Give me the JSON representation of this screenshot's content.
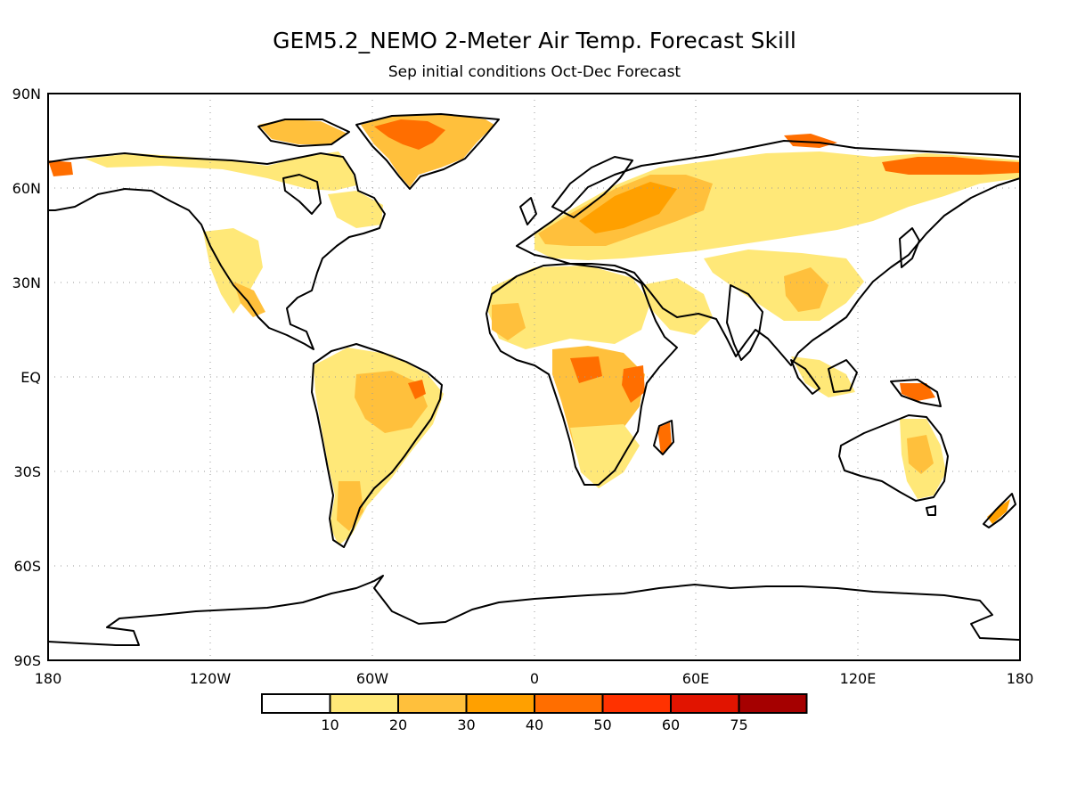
{
  "title": "GEM5.2_NEMO 2-Meter Air Temp. Forecast Skill",
  "subtitle": "Sep initial conditions  Oct-Dec Forecast",
  "lat_labels": [
    "90N",
    "60N",
    "30N",
    "EQ",
    "30S",
    "60S",
    "90S"
  ],
  "lon_labels": [
    "180",
    "120W",
    "60W",
    "0",
    "60E",
    "120E",
    "180"
  ],
  "colorbar": {
    "boundaries": [
      "10",
      "20",
      "30",
      "40",
      "50",
      "60",
      "75"
    ],
    "colors": [
      "#ffffff",
      "#ffe878",
      "#ffc03c",
      "#ffa000",
      "#ff6e00",
      "#ff3200",
      "#e11400",
      "#a50000"
    ]
  },
  "colors": {
    "coastline": "#000000",
    "gridline": "#9a9a9a"
  }
}
